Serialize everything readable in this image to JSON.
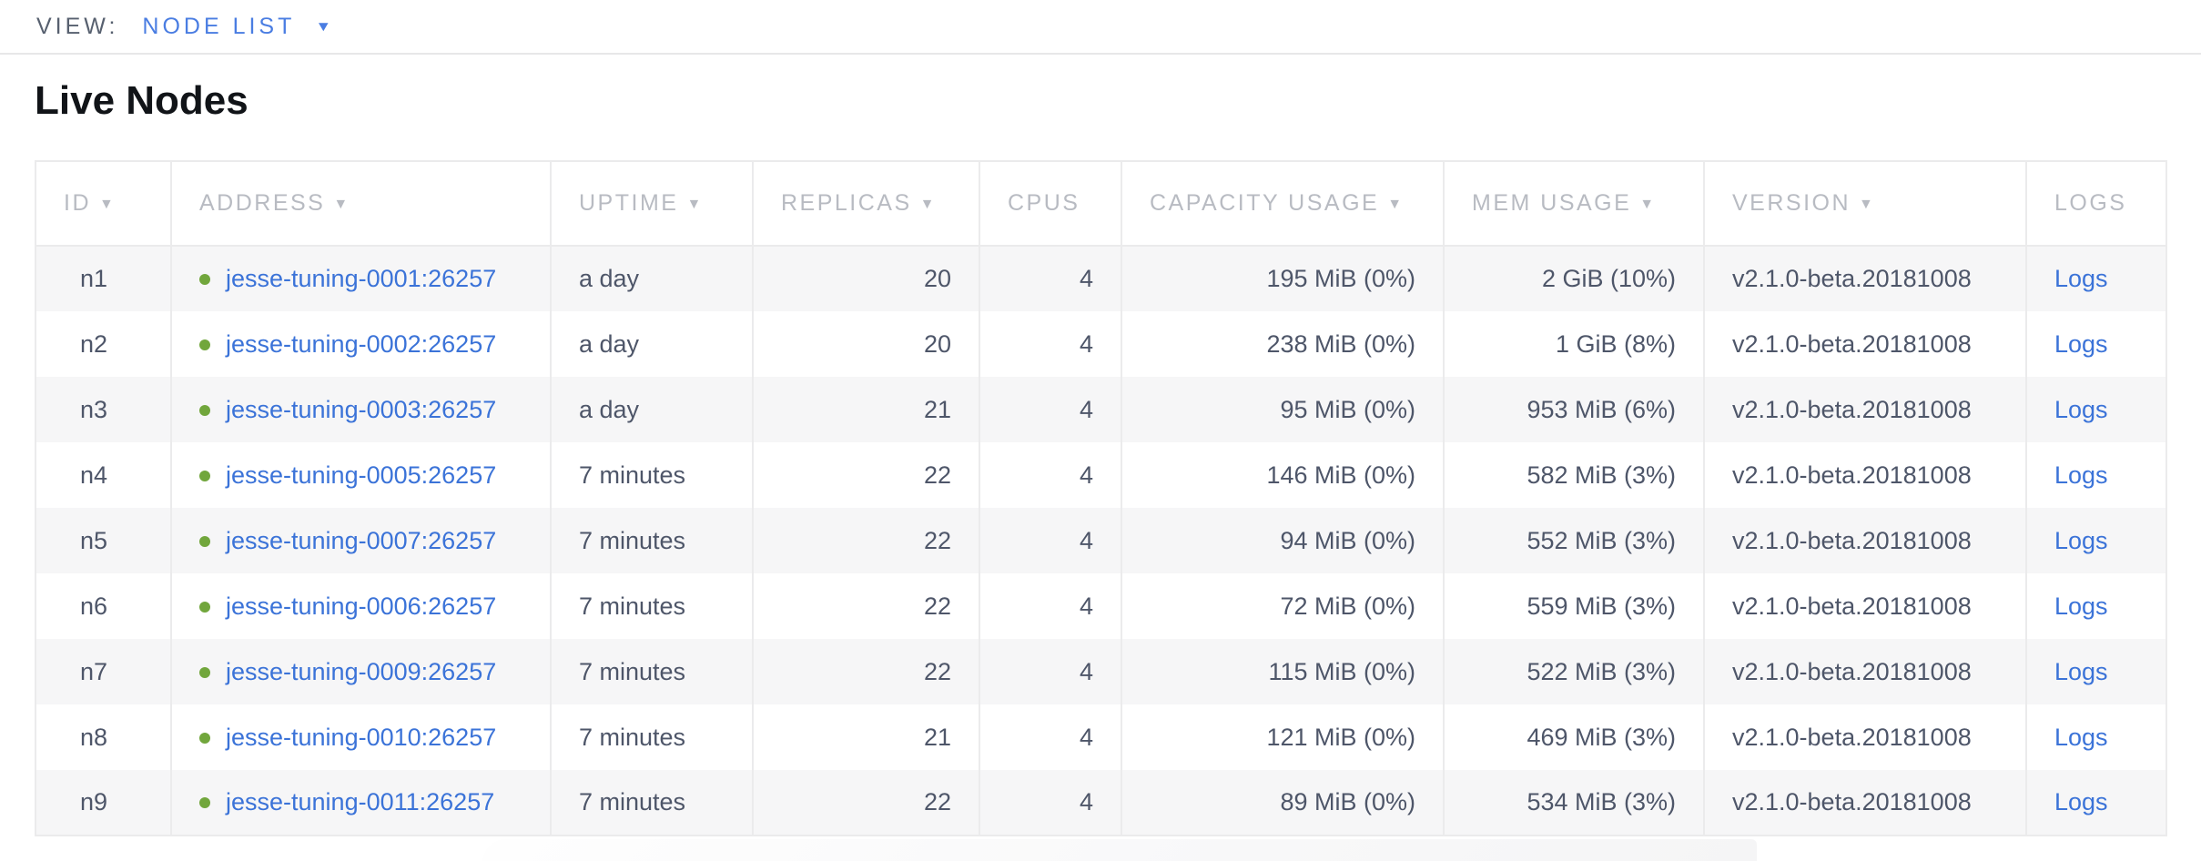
{
  "view_bar": {
    "label": "VIEW:",
    "selected": "NODE LIST",
    "caret_icon": "chevron-down-icon"
  },
  "page_title": "Live Nodes",
  "colors": {
    "accent_blue": "#3b73d8",
    "topbar_blue": "#4a7de2",
    "status_green": "#71a63c",
    "header_gray": "#b8bbc2",
    "cell_text": "#4e5669",
    "row_alt_gray": "#f6f6f7"
  },
  "table": {
    "columns": [
      {
        "field": "id",
        "label": "ID",
        "sortable": true,
        "align": "left",
        "type": "text"
      },
      {
        "field": "address",
        "label": "ADDRESS",
        "sortable": true,
        "align": "left",
        "type": "status-link"
      },
      {
        "field": "uptime",
        "label": "UPTIME",
        "sortable": true,
        "align": "left",
        "type": "text"
      },
      {
        "field": "replicas",
        "label": "REPLICAS",
        "sortable": true,
        "align": "right",
        "type": "text"
      },
      {
        "field": "cpus",
        "label": "CPUS",
        "sortable": false,
        "align": "right",
        "type": "text"
      },
      {
        "field": "capacity",
        "label": "CAPACITY USAGE",
        "sortable": true,
        "align": "right",
        "type": "text"
      },
      {
        "field": "mem",
        "label": "MEM USAGE",
        "sortable": true,
        "align": "right",
        "type": "text"
      },
      {
        "field": "version",
        "label": "VERSION",
        "sortable": true,
        "align": "left",
        "type": "text"
      },
      {
        "field": "logs",
        "label": "LOGS",
        "sortable": false,
        "align": "left",
        "type": "link"
      }
    ],
    "sort_arrow_glyph": "▼",
    "rows": [
      {
        "id": "n1",
        "status": "live",
        "address": "jesse-tuning-0001:26257",
        "uptime": "a day",
        "replicas": "20",
        "cpus": "4",
        "capacity": "195 MiB (0%)",
        "mem": "2 GiB (10%)",
        "version": "v2.1.0-beta.20181008",
        "logs": "Logs"
      },
      {
        "id": "n2",
        "status": "live",
        "address": "jesse-tuning-0002:26257",
        "uptime": "a day",
        "replicas": "20",
        "cpus": "4",
        "capacity": "238 MiB (0%)",
        "mem": "1 GiB (8%)",
        "version": "v2.1.0-beta.20181008",
        "logs": "Logs"
      },
      {
        "id": "n3",
        "status": "live",
        "address": "jesse-tuning-0003:26257",
        "uptime": "a day",
        "replicas": "21",
        "cpus": "4",
        "capacity": "95 MiB (0%)",
        "mem": "953 MiB (6%)",
        "version": "v2.1.0-beta.20181008",
        "logs": "Logs"
      },
      {
        "id": "n4",
        "status": "live",
        "address": "jesse-tuning-0005:26257",
        "uptime": "7 minutes",
        "replicas": "22",
        "cpus": "4",
        "capacity": "146 MiB (0%)",
        "mem": "582 MiB (3%)",
        "version": "v2.1.0-beta.20181008",
        "logs": "Logs"
      },
      {
        "id": "n5",
        "status": "live",
        "address": "jesse-tuning-0007:26257",
        "uptime": "7 minutes",
        "replicas": "22",
        "cpus": "4",
        "capacity": "94 MiB (0%)",
        "mem": "552 MiB (3%)",
        "version": "v2.1.0-beta.20181008",
        "logs": "Logs"
      },
      {
        "id": "n6",
        "status": "live",
        "address": "jesse-tuning-0006:26257",
        "uptime": "7 minutes",
        "replicas": "22",
        "cpus": "4",
        "capacity": "72 MiB (0%)",
        "mem": "559 MiB (3%)",
        "version": "v2.1.0-beta.20181008",
        "logs": "Logs"
      },
      {
        "id": "n7",
        "status": "live",
        "address": "jesse-tuning-0009:26257",
        "uptime": "7 minutes",
        "replicas": "22",
        "cpus": "4",
        "capacity": "115 MiB (0%)",
        "mem": "522 MiB (3%)",
        "version": "v2.1.0-beta.20181008",
        "logs": "Logs"
      },
      {
        "id": "n8",
        "status": "live",
        "address": "jesse-tuning-0010:26257",
        "uptime": "7 minutes",
        "replicas": "21",
        "cpus": "4",
        "capacity": "121 MiB (0%)",
        "mem": "469 MiB (3%)",
        "version": "v2.1.0-beta.20181008",
        "logs": "Logs"
      },
      {
        "id": "n9",
        "status": "live",
        "address": "jesse-tuning-0011:26257",
        "uptime": "7 minutes",
        "replicas": "22",
        "cpus": "4",
        "capacity": "89 MiB (0%)",
        "mem": "534 MiB (3%)",
        "version": "v2.1.0-beta.20181008",
        "logs": "Logs"
      }
    ]
  }
}
